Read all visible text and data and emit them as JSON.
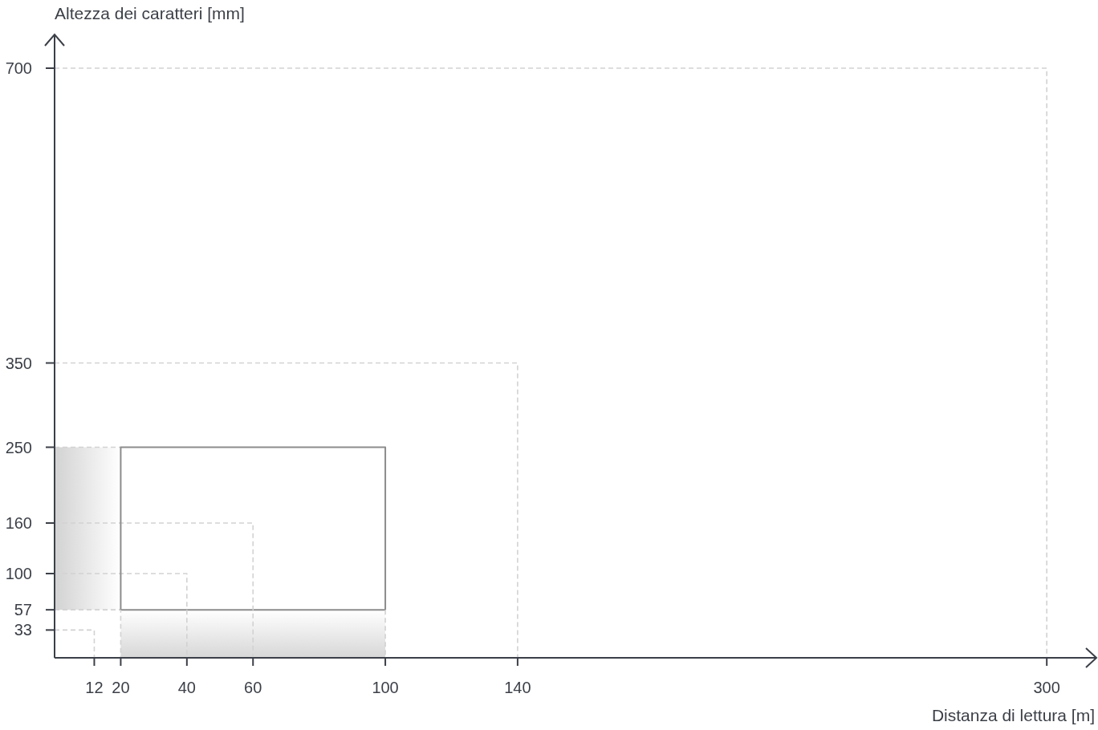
{
  "chart_data": {
    "type": "line",
    "xlabel": "Distanza di lettura [m]",
    "ylabel": "Altezza dei caratteri [mm]",
    "xlim": [
      0,
      315
    ],
    "xticks": [
      12,
      20,
      40,
      60,
      100,
      140,
      300
    ],
    "ylim": [
      0,
      740
    ],
    "yticks": [
      33,
      57,
      100,
      160,
      250,
      350,
      700
    ],
    "line_style": "dashed",
    "series": [
      {
        "color": "#d2d2d2",
        "x": [
          0,
          20
        ],
        "values": [
          250,
          250
        ],
        "lower": [
          57,
          57
        ],
        "upper": [
          250,
          250
        ]
      },
      {
        "type": "area",
        "color": "#8c8c8c",
        "line_style": "solid",
        "x": [
          20,
          100
        ],
        "values": [
          57,
          57
        ]
      },
      {
        "color": "#d2d2d2",
        "x": [
          0,
          12,
          12
        ],
        "values": [
          33,
          33,
          0
        ]
      },
      {
        "color": "#d2d2d2",
        "x": [
          0,
          40,
          40
        ],
        "values": [
          100,
          100,
          0
        ]
      },
      {
        "color": "#d2d2d2",
        "x": [
          0,
          60,
          60
        ],
        "values": [
          160,
          160,
          0
        ]
      },
      {
        "color": "#d2d2d2",
        "x": [
          0,
          140,
          140
        ],
        "values": [
          350,
          350,
          0
        ]
      },
      {
        "color": "#d2d2d2",
        "x": [
          0,
          300,
          300
        ],
        "values": [
          700,
          700,
          0
        ]
      },
      {
        "color": "#d2d2d2",
        "x": [
          0,
          20,
          20
        ],
        "values": [
          57,
          57,
          0
        ]
      },
      {
        "color": "#d2d2d2",
        "x": [
          100,
          100
        ],
        "values": [
          57,
          0
        ]
      },
      {
        "color": "#8c8c8c",
        "line_style": "solid",
        "x": [
          20,
          20,
          100,
          100
        ],
        "values": [
          57,
          250,
          250,
          57
        ]
      }
    ]
  }
}
